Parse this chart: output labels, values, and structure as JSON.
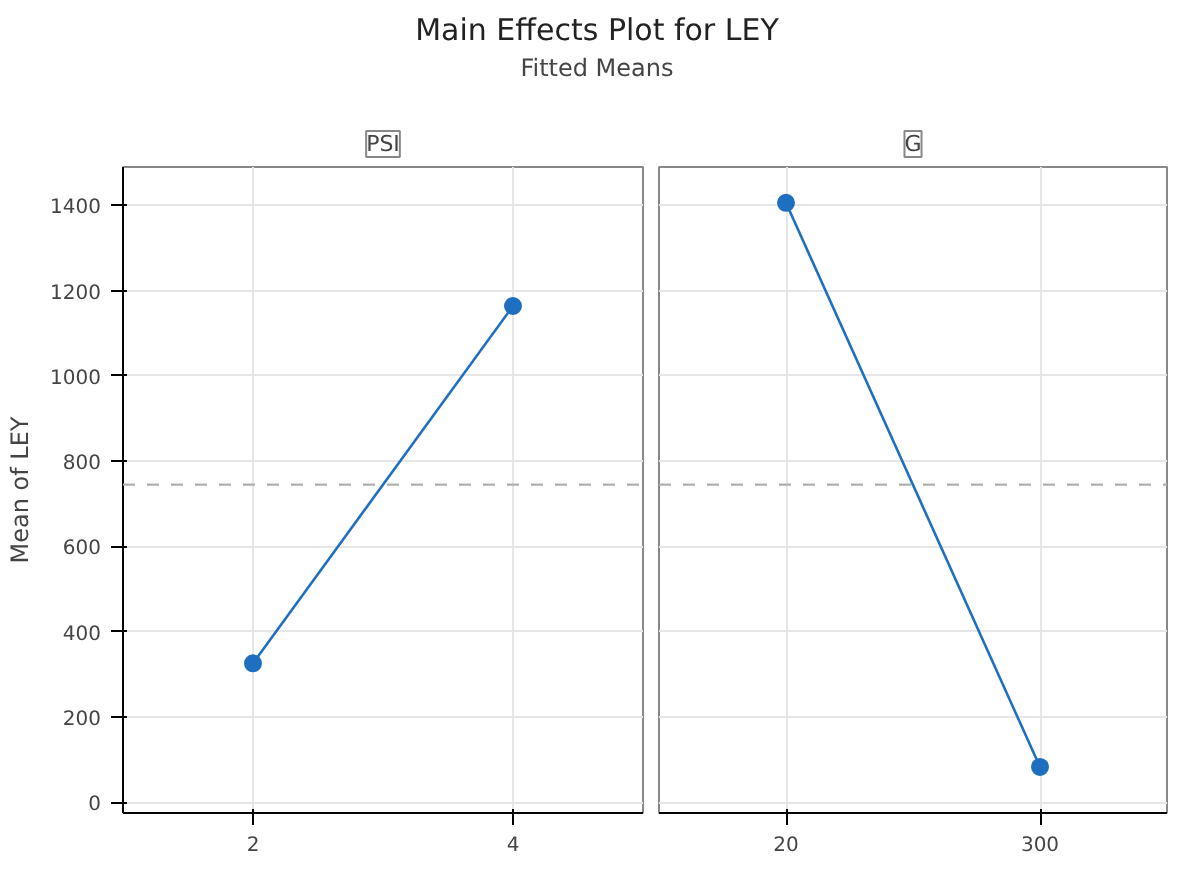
{
  "chart_data": [
    {
      "type": "line",
      "title": "PSI",
      "subtitle": "Main Effects Plot for LEY",
      "annotations": [
        "Fitted Means"
      ],
      "ylabel": "Mean of LEY",
      "categories": [
        "2",
        "4"
      ],
      "series": [
        {
          "color": "#1f6fc0",
          "values": [
            326,
            1164
          ]
        }
      ],
      "ylim": [
        -25,
        1490
      ],
      "yticks": [
        0,
        200,
        400,
        600,
        800,
        1000,
        1200,
        1400
      ],
      "grid": true,
      "marker": "circle",
      "line_style": "solid",
      "ref_lines": [
        {
          "axis": "y",
          "value": 745,
          "color": "#b0b0b0",
          "line_style": "dashed"
        }
      ]
    },
    {
      "type": "line",
      "title": "G",
      "categories": [
        "20",
        "300"
      ],
      "series": [
        {
          "color": "#1f6fc0",
          "values": [
            1406,
            83
          ]
        }
      ],
      "ylim": [
        -25,
        1490
      ],
      "yticks": [
        0,
        200,
        400,
        600,
        800,
        1000,
        1200,
        1400
      ],
      "grid": true,
      "marker": "circle",
      "line_style": "solid",
      "tick_labels": "x",
      "ref_lines": [
        {
          "axis": "y",
          "value": 745,
          "color": "#b0b0b0",
          "line_style": "dashed"
        }
      ]
    }
  ]
}
